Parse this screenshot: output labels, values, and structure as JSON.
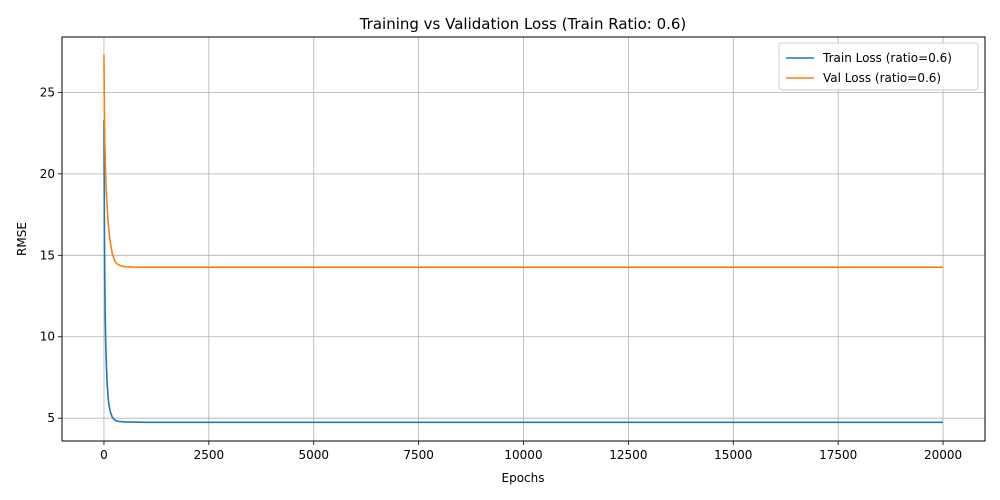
{
  "chart_data": {
    "type": "line",
    "title": "Training vs Validation Loss (Train Ratio: 0.6)",
    "xlabel": "Epochs",
    "ylabel": "RMSE",
    "xlim": [
      -1000,
      21000
    ],
    "ylim": [
      3.6,
      28.4
    ],
    "xticks": [
      0,
      2500,
      5000,
      7500,
      10000,
      12500,
      15000,
      17500,
      20000
    ],
    "xtick_labels": [
      "0",
      "2500",
      "5000",
      "7500",
      "10000",
      "12500",
      "15000",
      "17500",
      "20000"
    ],
    "yticks": [
      5,
      10,
      15,
      20,
      25
    ],
    "ytick_labels": [
      "5",
      "10",
      "15",
      "20",
      "25"
    ],
    "grid": true,
    "legend_position": "top-right",
    "series": [
      {
        "name": "Train Loss (ratio=0.6)",
        "color": "#1f77b4",
        "x": [
          0,
          5,
          10,
          20,
          30,
          40,
          50,
          60,
          70,
          80,
          100,
          120,
          150,
          200,
          250,
          300,
          400,
          500,
          700,
          1000,
          2000,
          5000,
          10000,
          15000,
          20000
        ],
        "y": [
          23.3,
          20.0,
          17.0,
          13.5,
          11.3,
          9.9,
          8.9,
          8.1,
          7.5,
          7.0,
          6.3,
          5.8,
          5.4,
          5.05,
          4.9,
          4.83,
          4.79,
          4.77,
          4.76,
          4.75,
          4.75,
          4.75,
          4.75,
          4.75,
          4.75
        ]
      },
      {
        "name": "Val Loss (ratio=0.6)",
        "color": "#ff7f0e",
        "x": [
          0,
          10,
          20,
          40,
          60,
          80,
          100,
          150,
          200,
          250,
          300,
          400,
          500,
          700,
          1000,
          2000,
          5000,
          10000,
          15000,
          20000
        ],
        "y": [
          27.3,
          24.0,
          22.0,
          20.0,
          18.7,
          17.8,
          17.0,
          15.8,
          15.1,
          14.7,
          14.5,
          14.35,
          14.3,
          14.28,
          14.27,
          14.27,
          14.27,
          14.27,
          14.27,
          14.27
        ]
      }
    ]
  }
}
